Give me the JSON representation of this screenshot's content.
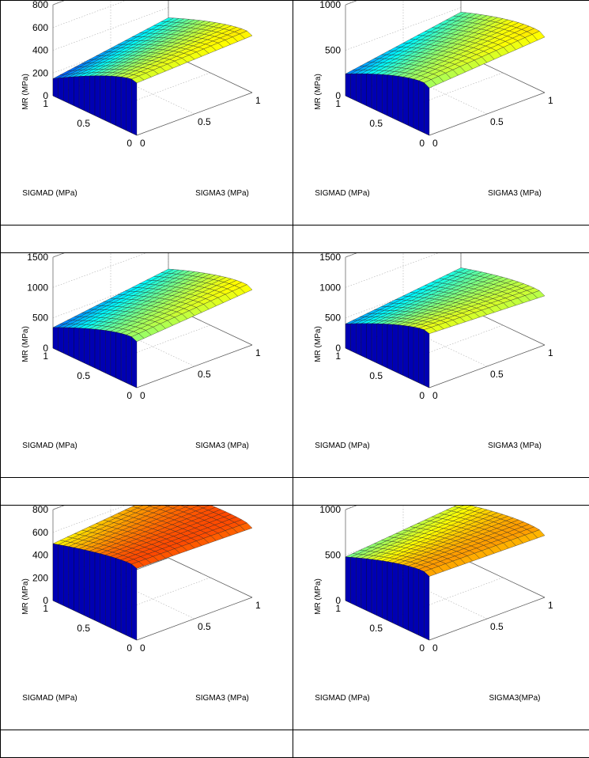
{
  "chart_data": [
    {
      "type": "surface",
      "title": "",
      "xlabel": "SIGMAD (MPa)",
      "ylabel": "SIGMA3 (MPa)",
      "zlabel": "MR (MPa)",
      "x_ticks": [
        "0",
        "0.5",
        "1"
      ],
      "y_ticks": [
        "0",
        "0.5",
        "1"
      ],
      "z_ticks": [
        "0",
        "200",
        "400",
        "600",
        "800"
      ],
      "zlim": [
        0,
        800
      ],
      "colormap": "jet",
      "surface": {
        "corner_far_x0_y0": 580,
        "corner_x1_y0": 150,
        "corner_x1_y1": 310,
        "corner_x0_y1": 620,
        "edge_x0_peak": 200
      }
    },
    {
      "type": "surface",
      "title": "",
      "xlabel": "SIGMAD (MPa)",
      "ylabel": "SIGMA3 (MPa)",
      "zlabel": "MR (MPa)",
      "x_ticks": [
        "0",
        "0.5",
        "1"
      ],
      "y_ticks": [
        "0",
        "0.5",
        "1"
      ],
      "z_ticks": [
        "0",
        "500",
        "1000"
      ],
      "zlim": [
        0,
        1000
      ],
      "colormap": "jet",
      "surface": {
        "corner_far_x0_y0": 700,
        "corner_x1_y0": 240,
        "corner_x1_y1": 450,
        "corner_x0_y1": 790,
        "edge_x0_peak": 300
      }
    },
    {
      "type": "surface",
      "title": "",
      "xlabel": "SIGMAD (MPa)",
      "ylabel": "SIGMA3 (MPa)",
      "zlabel": "MR (MPa)",
      "x_ticks": [
        "0",
        "0.5",
        "1"
      ],
      "y_ticks": [
        "0",
        "0.5",
        "1"
      ],
      "z_ticks": [
        "0",
        "500",
        "1000",
        "1500"
      ],
      "zlim": [
        0,
        1500
      ],
      "colormap": "jet",
      "surface": {
        "corner_far_x0_y0": 1000,
        "corner_x1_y0": 340,
        "corner_x1_y1": 600,
        "corner_x0_y1": 1150,
        "edge_x0_peak": 400
      }
    },
    {
      "type": "surface",
      "title": "",
      "xlabel": "SIGMAD (MPa)",
      "ylabel": "SIGMA3 (MPa)",
      "zlabel": "MR (MPa)",
      "x_ticks": [
        "0",
        "0.5",
        "1"
      ],
      "y_ticks": [
        "0",
        "0.5",
        "1"
      ],
      "z_ticks": [
        "0",
        "500",
        "1000",
        "1500"
      ],
      "zlim": [
        0,
        1500
      ],
      "colormap": "jet",
      "surface": {
        "corner_far_x0_y0": 1100,
        "corner_x1_y0": 400,
        "corner_x1_y1": 620,
        "corner_x0_y1": 1020,
        "edge_x0_peak": 350
      }
    },
    {
      "type": "surface",
      "title": "",
      "xlabel": "SIGMAD (MPa)",
      "ylabel": "SIGMA3 (MPa)",
      "zlabel": "MR (MPa)",
      "x_ticks": [
        "0",
        "0.5",
        "1"
      ],
      "y_ticks": [
        "0",
        "0.5",
        "1"
      ],
      "z_ticks": [
        "0",
        "200",
        "400",
        "600",
        "800"
      ],
      "zlim": [
        0,
        800
      ],
      "colormap": "jet",
      "surface": {
        "corner_far_x0_y0": 720,
        "corner_x1_y0": 500,
        "corner_x1_y1": 600,
        "corner_x0_y1": 700,
        "edge_x0_peak": 150
      }
    },
    {
      "type": "surface",
      "title": "",
      "xlabel": "SIGMAD (MPa)",
      "ylabel": "SIGMA3(MPa)",
      "zlabel": "MR (MPa)",
      "x_ticks": [
        "0",
        "0.5",
        "1"
      ],
      "y_ticks": [
        "0",
        "0.5",
        "1"
      ],
      "z_ticks": [
        "0",
        "500",
        "1000"
      ],
      "zlim": [
        0,
        1000
      ],
      "colormap": "jet",
      "surface": {
        "corner_far_x0_y0": 850,
        "corner_x1_y0": 480,
        "corner_x1_y1": 600,
        "corner_x0_y1": 830,
        "edge_x0_peak": 250
      }
    }
  ]
}
